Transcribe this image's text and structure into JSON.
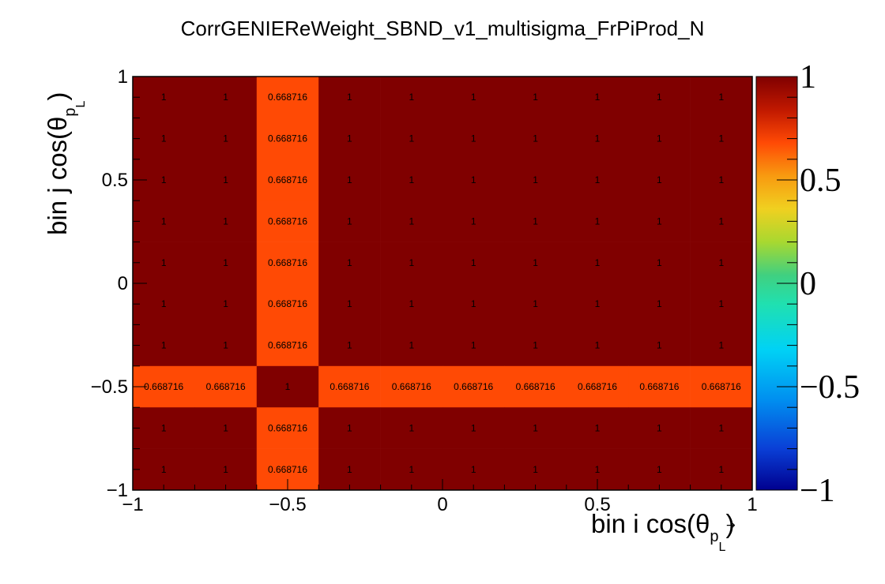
{
  "chart_data": {
    "type": "heatmap",
    "title": "CorrGENIEReWeight_SBND_v1_multisigma_FrPiProd_N",
    "xlabel": "bin i cos(θ",
    "xlabel_sub": "p",
    "xlabel_close": ")",
    "ylabel": "bin j cos(θ",
    "ylabel_sub": "p",
    "ylabel_close": ")",
    "label_sub_index": "L",
    "xlim": [
      -1,
      1
    ],
    "ylim": [
      -1,
      1
    ],
    "zlim": [
      -1,
      1
    ],
    "x_ticks": [
      "−1",
      "−0.5",
      "0",
      "0.5",
      "1"
    ],
    "y_ticks": [
      "−1",
      "−0.5",
      "0",
      "0.5",
      "1"
    ],
    "z_ticks": [
      "−1",
      "−0.5",
      "0",
      "0.5",
      "1"
    ],
    "nbins": 10,
    "colormap": "rainbow",
    "values": [
      [
        "1",
        "1",
        "0.668716",
        "1",
        "1",
        "1",
        "1",
        "1",
        "1",
        "1"
      ],
      [
        "1",
        "1",
        "0.668716",
        "1",
        "1",
        "1",
        "1",
        "1",
        "1",
        "1"
      ],
      [
        "1",
        "1",
        "0.668716",
        "1",
        "1",
        "1",
        "1",
        "1",
        "1",
        "1"
      ],
      [
        "1",
        "1",
        "0.668716",
        "1",
        "1",
        "1",
        "1",
        "1",
        "1",
        "1"
      ],
      [
        "1",
        "1",
        "0.668716",
        "1",
        "1",
        "1",
        "1",
        "1",
        "1",
        "1"
      ],
      [
        "1",
        "1",
        "0.668716",
        "1",
        "1",
        "1",
        "1",
        "1",
        "1",
        "1"
      ],
      [
        "1",
        "1",
        "0.668716",
        "1",
        "1",
        "1",
        "1",
        "1",
        "1",
        "1"
      ],
      [
        "0.668716",
        "0.668716",
        "1",
        "0.668716",
        "0.668716",
        "0.668716",
        "0.668716",
        "0.668716",
        "0.668716",
        "0.668716"
      ],
      [
        "1",
        "1",
        "0.668716",
        "1",
        "1",
        "1",
        "1",
        "1",
        "1",
        "1"
      ],
      [
        "1",
        "1",
        "0.668716",
        "1",
        "1",
        "1",
        "1",
        "1",
        "1",
        "1"
      ]
    ]
  }
}
